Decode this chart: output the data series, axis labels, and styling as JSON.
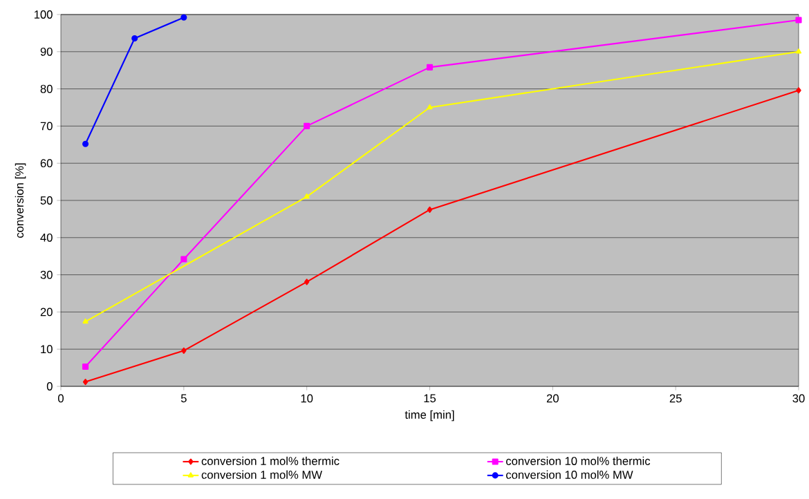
{
  "chart_data": {
    "type": "line",
    "xlabel": "time [min]",
    "ylabel": "conversion [%]",
    "xlim": [
      0,
      30
    ],
    "xticks": [
      0,
      5,
      10,
      15,
      20,
      25,
      30
    ],
    "ylim": [
      0,
      100
    ],
    "yticks": [
      0,
      10,
      20,
      30,
      40,
      50,
      60,
      70,
      80,
      90,
      100
    ],
    "grid": "y",
    "legend": "bottom",
    "line_style": "solid",
    "series": [
      {
        "name": "conversion 1 mol% thermic",
        "color": "#ff0000",
        "marker": "diamond",
        "x": [
          1,
          5,
          10,
          15,
          30
        ],
        "values": [
          1.2,
          9.6,
          28.1,
          47.5,
          79.6
        ]
      },
      {
        "name": "conversion 10 mol% thermic",
        "color": "#ff00ff",
        "marker": "square",
        "x": [
          1,
          5,
          10,
          15,
          30
        ],
        "values": [
          5.3,
          34.2,
          70.0,
          85.8,
          98.5
        ]
      },
      {
        "name": "conversion 1 mol% MW",
        "color": "#ffff00",
        "marker": "triangle",
        "x": [
          1,
          10,
          15,
          30
        ],
        "values": [
          17.4,
          51.0,
          75.0,
          90.0
        ]
      },
      {
        "name": "conversion 10 mol% MW",
        "color": "#0000ff",
        "marker": "circle",
        "x": [
          1,
          3,
          5
        ],
        "values": [
          65.2,
          93.6,
          99.2
        ]
      }
    ]
  }
}
